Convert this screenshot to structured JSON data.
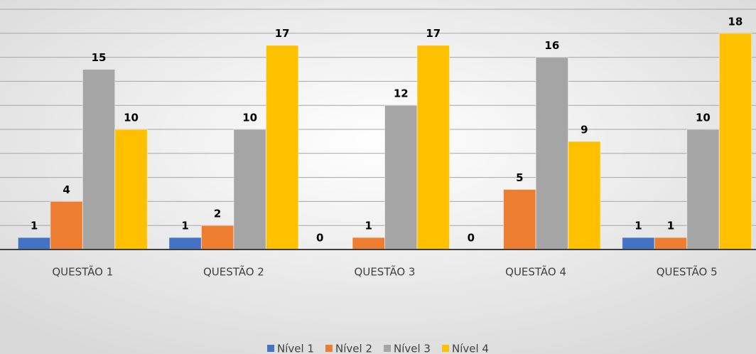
{
  "chart_data": {
    "type": "bar",
    "categories": [
      "QUESTÃO 1",
      "QUESTÃO 2",
      "QUESTÃO 3",
      "QUESTÃO 4",
      "QUESTÃO 5"
    ],
    "series": [
      {
        "name": "Nível 1",
        "color": "#4472c4",
        "values": [
          1,
          1,
          0,
          0,
          1
        ]
      },
      {
        "name": "Nível 2",
        "color": "#ed7d31",
        "values": [
          4,
          2,
          1,
          5,
          1
        ]
      },
      {
        "name": "Nível 3",
        "color": "#a5a5a5",
        "values": [
          15,
          10,
          12,
          16,
          10
        ]
      },
      {
        "name": "Nível 4",
        "color": "#ffc000",
        "values": [
          10,
          17,
          17,
          9,
          18
        ]
      }
    ],
    "ylim": [
      0,
      20
    ],
    "yticks": [
      0,
      2,
      4,
      6,
      8,
      10,
      12,
      14,
      16,
      18,
      20
    ],
    "grid": true,
    "legend": "bottom"
  }
}
